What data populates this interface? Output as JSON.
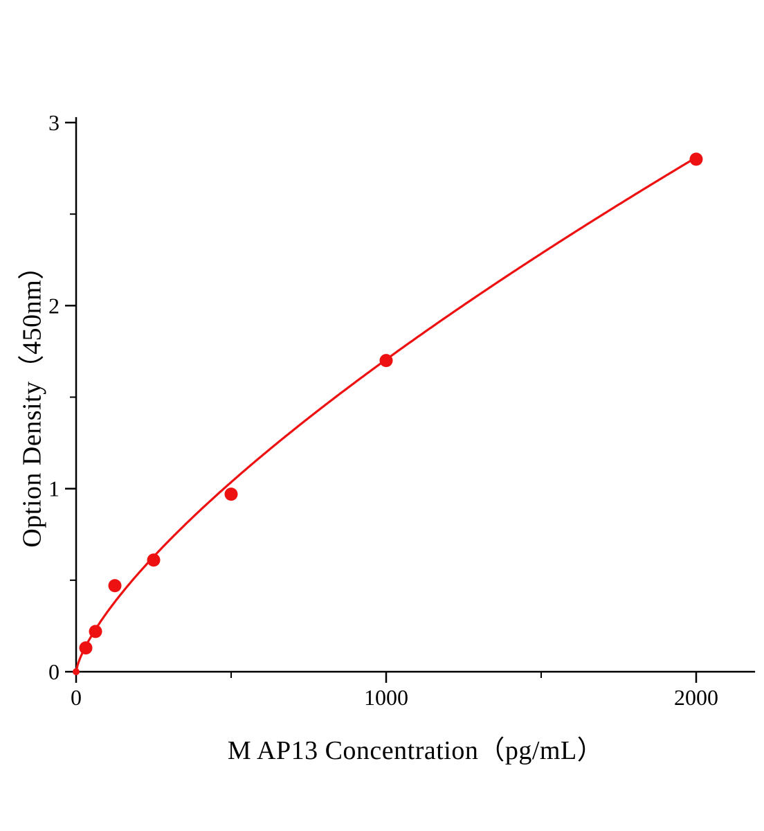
{
  "chart_data": {
    "type": "scatter",
    "title": "",
    "xlabel": "M AP13 Concentration（pg/mL）",
    "ylabel": "Option Density（450nm）",
    "x_points": [
      0,
      31.25,
      62.5,
      125,
      250,
      500,
      1000,
      2000
    ],
    "y_points": [
      0,
      0.13,
      0.22,
      0.47,
      0.61,
      0.97,
      1.7,
      2.8
    ],
    "xlim": [
      0,
      2190
    ],
    "ylim": [
      0,
      3.03
    ],
    "x_major_ticks": [
      0,
      1000,
      2000
    ],
    "x_minor_ticks": [
      500,
      1500
    ],
    "y_major_ticks": [
      0,
      1,
      2,
      3
    ],
    "y_minor_ticks": [
      0.5,
      1.5,
      2.5
    ],
    "grid": false,
    "legend": false,
    "marker": "circle",
    "line_color": "#ee1111",
    "marker_color": "#ee1111",
    "axis_color": "#000000",
    "background_color": "#ffffff",
    "curve_fit": {
      "type": "power",
      "a": 0.0118,
      "b": 0.72
    }
  }
}
